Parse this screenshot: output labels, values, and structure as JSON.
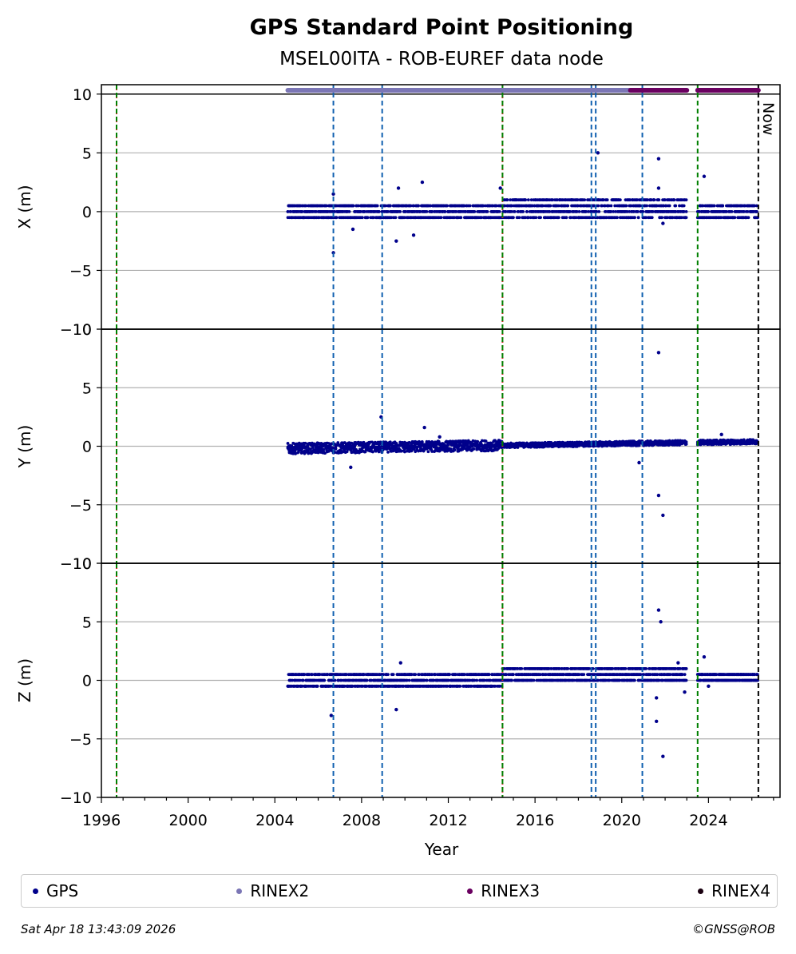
{
  "chart_data": {
    "type": "scatter",
    "title": "GPS Standard Point Positioning",
    "subtitle": "MSEL00ITA - ROB-EUREF data node",
    "xlabel": "Year",
    "xlim": [
      1996,
      2027.3
    ],
    "x_ticks": [
      "1996",
      "2000",
      "2004",
      "2008",
      "2012",
      "2016",
      "2020",
      "2024"
    ],
    "now_label": "Now",
    "now_x": 2026.3,
    "panels": [
      {
        "ylabel": "X (m)",
        "ylim": [
          -10,
          10.8
        ],
        "ytick_labels": [
          "10",
          "5",
          "0",
          "−5",
          "−10"
        ],
        "band": [
          -0.6,
          1.0
        ],
        "outliers": [
          [
            2006.7,
            -3.5
          ],
          [
            2006.7,
            1.5
          ],
          [
            2009.6,
            -2.5
          ],
          [
            2009.7,
            2.0
          ],
          [
            2010.8,
            2.5
          ],
          [
            2014.4,
            2.0
          ],
          [
            2018.9,
            5.0
          ],
          [
            2021.7,
            4.5
          ],
          [
            2021.7,
            2.0
          ],
          [
            2021.9,
            -1.0
          ],
          [
            2023.8,
            3.0
          ],
          [
            2007.6,
            -1.5
          ],
          [
            2010.4,
            -2.0
          ]
        ]
      },
      {
        "ylabel": "Y (m)",
        "ylim": [
          -10,
          10
        ],
        "ytick_labels": [
          "10",
          "5",
          "0",
          "−5",
          "−10"
        ],
        "band": [
          -0.6,
          0.6
        ],
        "outliers": [
          [
            2008.9,
            2.5
          ],
          [
            2010.9,
            1.6
          ],
          [
            2007.5,
            -1.8
          ],
          [
            2020.8,
            -1.4
          ],
          [
            2021.7,
            8.0
          ],
          [
            2021.7,
            -4.2
          ],
          [
            2021.9,
            -5.9
          ],
          [
            2024.6,
            1.0
          ],
          [
            2011.6,
            0.8
          ]
        ]
      },
      {
        "ylabel": "Z (m)",
        "ylim": [
          -10,
          10
        ],
        "ytick_labels": [
          "10",
          "5",
          "0",
          "−5",
          "−10"
        ],
        "band": [
          -0.6,
          1.0
        ],
        "outliers": [
          [
            2006.6,
            -3.0
          ],
          [
            2009.6,
            -2.5
          ],
          [
            2009.8,
            1.5
          ],
          [
            2021.6,
            -3.5
          ],
          [
            2021.6,
            -1.5
          ],
          [
            2021.7,
            6.0
          ],
          [
            2021.8,
            5.0
          ],
          [
            2021.9,
            -6.5
          ],
          [
            2023.8,
            2.0
          ],
          [
            2024.0,
            -0.5
          ],
          [
            2022.9,
            -1.0
          ],
          [
            2022.6,
            1.5
          ]
        ]
      }
    ],
    "data_start": 2004.6,
    "data_end": 2026.3,
    "gap": [
      2023.0,
      2023.5
    ],
    "coverage_bars": [
      {
        "name": "RINEX2",
        "color": "#7b76b5",
        "from": 2004.6,
        "to": 2021.0
      },
      {
        "name": "RINEX3",
        "color": "#6a0060",
        "from": 2020.4,
        "to": 2023.0
      },
      {
        "name": "RINEX3",
        "color": "#6a0060",
        "from": 2023.5,
        "to": 2026.3
      }
    ],
    "vlines": [
      {
        "x": 1996.7,
        "color": "#d62728",
        "style": "dotted"
      },
      {
        "x": 1996.7,
        "color": "#008000",
        "style": "dashed"
      },
      {
        "x": 2014.5,
        "color": "#d62728",
        "style": "dotted"
      },
      {
        "x": 2014.5,
        "color": "#008000",
        "style": "dashed"
      },
      {
        "x": 2006.7,
        "color": "#1060b0",
        "style": "dashed"
      },
      {
        "x": 2008.95,
        "color": "#1060b0",
        "style": "dashed"
      },
      {
        "x": 2018.6,
        "color": "#1060b0",
        "style": "dashed"
      },
      {
        "x": 2018.8,
        "color": "#1060b0",
        "style": "dashed"
      },
      {
        "x": 2020.95,
        "color": "#1060b0",
        "style": "dashed"
      },
      {
        "x": 2023.5,
        "color": "#008000",
        "style": "dashed"
      },
      {
        "x": 2026.3,
        "color": "#000000",
        "style": "dashed"
      }
    ],
    "legend": [
      {
        "name": "GPS",
        "color": "#00008b"
      },
      {
        "name": "RINEX2",
        "color": "#7b76b5"
      },
      {
        "name": "RINEX3",
        "color": "#6a0060"
      },
      {
        "name": "RINEX4",
        "color": "#1a0010"
      }
    ],
    "point_color": "#00008b"
  },
  "footer": {
    "timestamp": "Sat Apr 18 13:43:09 2026",
    "credit": "©GNSS@ROB"
  }
}
